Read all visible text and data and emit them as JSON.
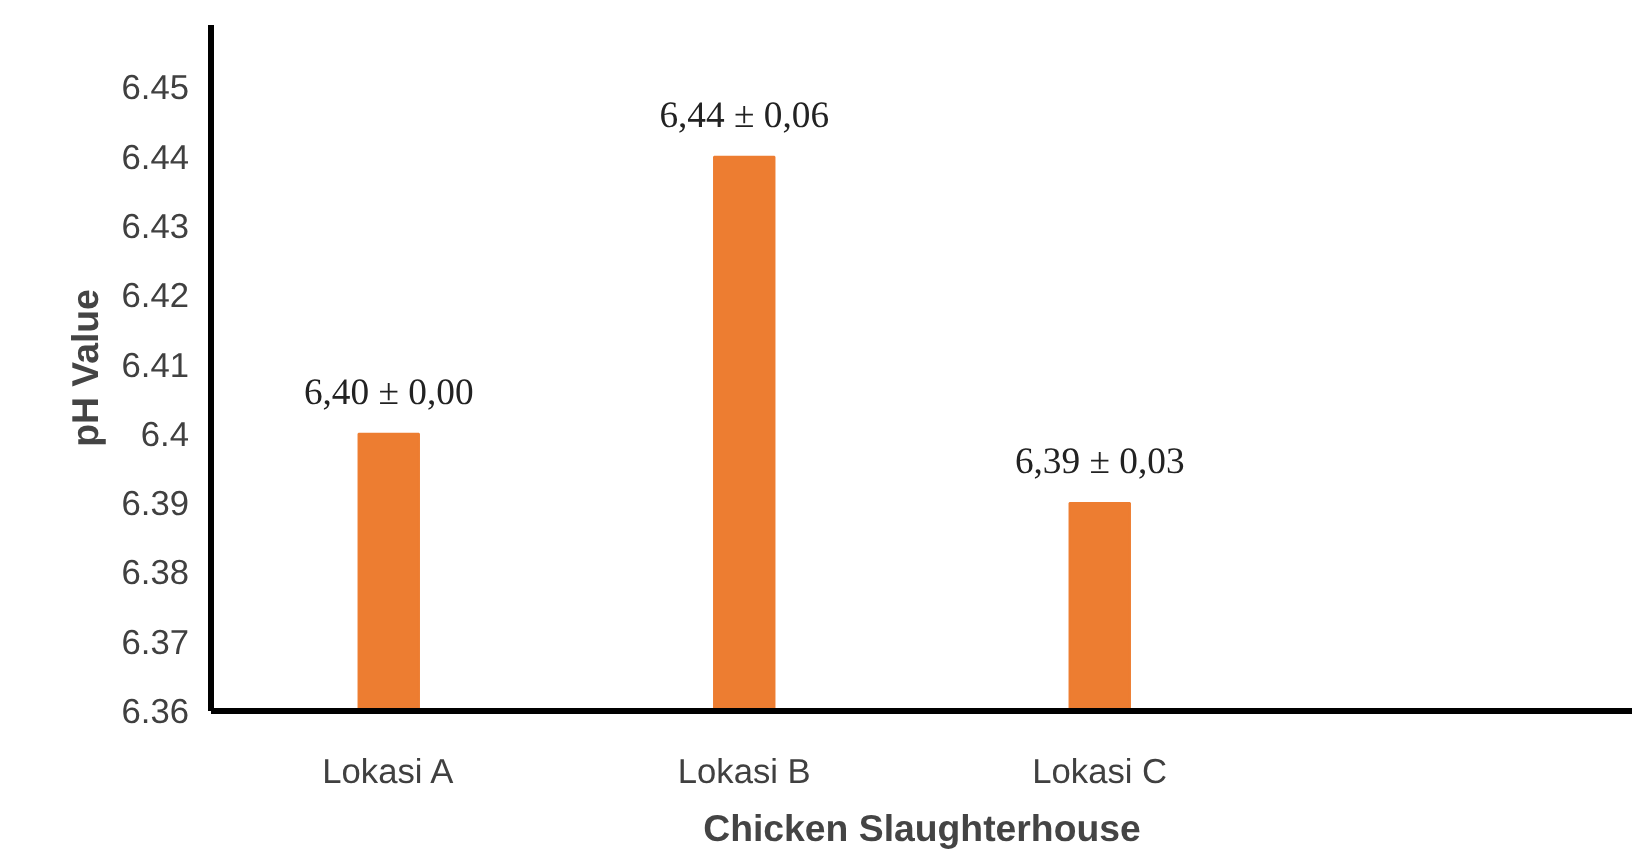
{
  "chart_data": {
    "type": "bar",
    "xlabel": "Chicken Slaughterhouse",
    "ylabel": "pH Value",
    "categories": [
      "Lokasi A",
      "Lokasi B",
      "Lokasi C",
      null
    ],
    "values": [
      6.4,
      6.44,
      6.39,
      null
    ],
    "value_labels": [
      "6,40 ± 0,00",
      "6,44 ± 0,06",
      "6,39 ± 0,03",
      null
    ],
    "color": "#ed7d31",
    "ylim": [
      6.36,
      6.459
    ],
    "yticks": [
      6.36,
      6.37,
      6.38,
      6.39,
      {
        "value": 6.4,
        "label": "6.4"
      },
      6.41,
      6.42,
      6.43,
      6.44,
      6.45
    ],
    "grid": false
  }
}
